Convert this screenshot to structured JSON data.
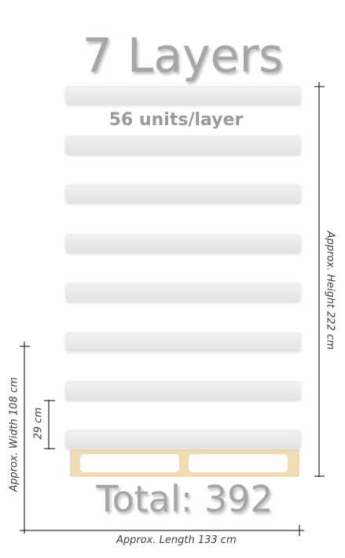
{
  "title": "7 Layers",
  "units_per_layer": "56 units/layer",
  "layer_count": 7,
  "total": "Total: 392",
  "dimensions": {
    "height": "Approx. Height 222 cm",
    "width": "Approx. Width 108 cm",
    "length": "Approx. Length 133 cm",
    "layer_height": "29 cm"
  },
  "colors": {
    "text_gray": "#a6a6a6",
    "layer": "#e6e6e6",
    "pallet": "#f2dcb3",
    "line": "#000000"
  }
}
